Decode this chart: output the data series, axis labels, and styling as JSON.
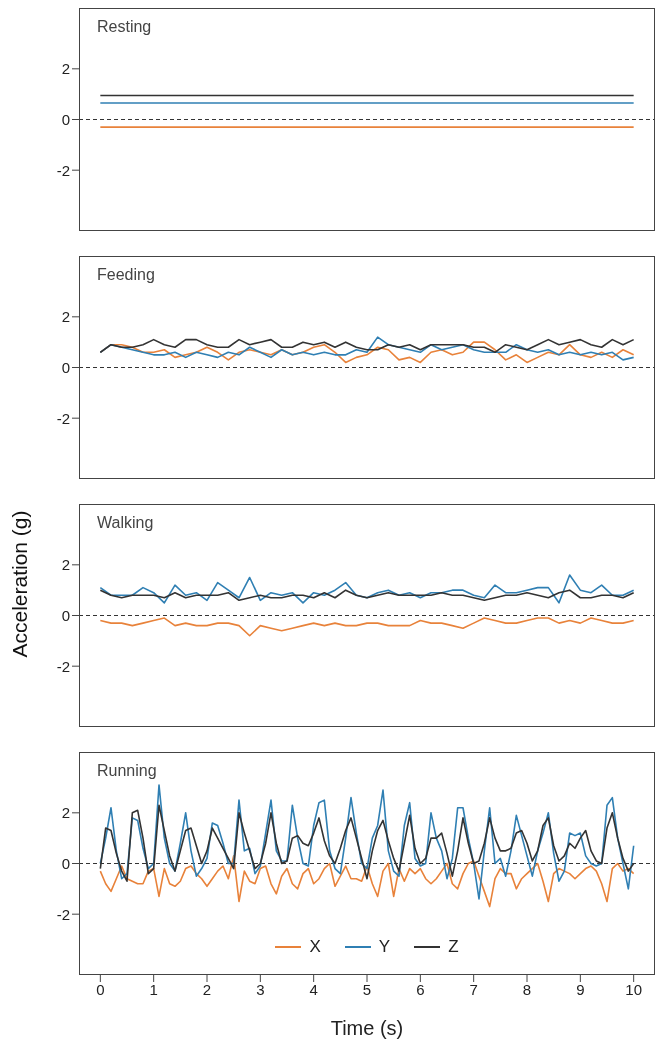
{
  "chart_data": [
    {
      "type": "line",
      "title": "Resting",
      "x": [
        0,
        10
      ],
      "xlim": [
        -0.4,
        10.4
      ],
      "xticks": [
        0,
        1,
        2,
        3,
        4,
        5,
        6,
        7,
        8,
        9,
        10
      ],
      "ylim": [
        -4.4,
        4.4
      ],
      "yticks": [
        -2,
        0,
        2
      ],
      "tick_labels": "y",
      "ref_lines": [
        {
          "axis": "y",
          "value": 0,
          "line_style": "dashed",
          "color": "#333333"
        }
      ],
      "series": [
        {
          "color": "#e8823a",
          "values": [
            -0.3,
            -0.3
          ]
        },
        {
          "color": "#2f7fb3",
          "values": [
            0.65,
            0.65
          ]
        },
        {
          "color": "#333333",
          "values": [
            0.95,
            0.95
          ]
        }
      ]
    },
    {
      "type": "line",
      "title": "Feeding",
      "x": [
        0,
        0.2,
        0.4,
        0.6,
        0.8,
        1,
        1.2,
        1.4,
        1.6,
        1.8,
        2,
        2.2,
        2.4,
        2.6,
        2.8,
        3,
        3.2,
        3.4,
        3.6,
        3.8,
        4,
        4.2,
        4.4,
        4.6,
        4.8,
        5,
        5.2,
        5.4,
        5.6,
        5.8,
        6,
        6.2,
        6.4,
        6.6,
        6.8,
        7,
        7.2,
        7.4,
        7.6,
        7.8,
        8,
        8.2,
        8.4,
        8.6,
        8.8,
        9,
        9.2,
        9.4,
        9.6,
        9.8,
        10
      ],
      "xlim": [
        -0.4,
        10.4
      ],
      "xticks": [
        0,
        1,
        2,
        3,
        4,
        5,
        6,
        7,
        8,
        9,
        10
      ],
      "ylim": [
        -4.4,
        4.4
      ],
      "yticks": [
        -2,
        0,
        2
      ],
      "tick_labels": "y",
      "ref_lines": [
        {
          "axis": "y",
          "value": 0,
          "line_style": "dashed",
          "color": "#333333"
        }
      ],
      "series": [
        {
          "color": "#e8823a",
          "values": [
            0.6,
            0.9,
            0.9,
            0.8,
            0.6,
            0.6,
            0.7,
            0.4,
            0.5,
            0.6,
            0.8,
            0.6,
            0.3,
            0.6,
            0.7,
            0.6,
            0.5,
            0.7,
            0.5,
            0.6,
            0.8,
            0.9,
            0.6,
            0.2,
            0.4,
            0.5,
            0.8,
            0.7,
            0.3,
            0.4,
            0.2,
            0.6,
            0.7,
            0.5,
            0.6,
            1.0,
            1.0,
            0.7,
            0.3,
            0.5,
            0.2,
            0.4,
            0.6,
            0.5,
            0.9,
            0.5,
            0.4,
            0.6,
            0.4,
            0.7,
            0.5
          ]
        },
        {
          "color": "#2f7fb3",
          "values": [
            0.6,
            0.9,
            0.8,
            0.7,
            0.6,
            0.5,
            0.5,
            0.6,
            0.4,
            0.6,
            0.5,
            0.4,
            0.6,
            0.5,
            0.8,
            0.6,
            0.4,
            0.7,
            0.5,
            0.6,
            0.5,
            0.6,
            0.5,
            0.5,
            0.7,
            0.6,
            1.2,
            0.9,
            0.8,
            0.7,
            0.6,
            0.9,
            0.7,
            0.8,
            0.9,
            0.7,
            0.6,
            0.6,
            0.6,
            0.9,
            0.7,
            0.6,
            0.7,
            0.5,
            0.6,
            0.5,
            0.6,
            0.5,
            0.6,
            0.3,
            0.4
          ]
        },
        {
          "color": "#333333",
          "values": [
            0.6,
            0.9,
            0.8,
            0.8,
            0.9,
            1.1,
            0.9,
            0.8,
            1.1,
            1.1,
            0.9,
            0.8,
            0.8,
            1.1,
            0.9,
            1.0,
            1.1,
            0.8,
            0.8,
            1.0,
            0.9,
            1.0,
            0.8,
            1.0,
            0.8,
            0.7,
            0.7,
            0.9,
            0.8,
            0.9,
            0.7,
            0.9,
            0.9,
            0.9,
            0.9,
            0.8,
            0.8,
            0.6,
            0.9,
            0.8,
            0.7,
            0.9,
            1.1,
            0.9,
            1.0,
            1.1,
            0.9,
            0.8,
            1.1,
            0.9,
            1.1
          ]
        }
      ]
    },
    {
      "type": "line",
      "title": "Walking",
      "ylabel": "Acceleration (g)",
      "x": [
        0,
        0.2,
        0.4,
        0.6,
        0.8,
        1,
        1.2,
        1.4,
        1.6,
        1.8,
        2,
        2.2,
        2.4,
        2.6,
        2.8,
        3,
        3.2,
        3.4,
        3.6,
        3.8,
        4,
        4.2,
        4.4,
        4.6,
        4.8,
        5,
        5.2,
        5.4,
        5.6,
        5.8,
        6,
        6.2,
        6.4,
        6.6,
        6.8,
        7,
        7.2,
        7.4,
        7.6,
        7.8,
        8,
        8.2,
        8.4,
        8.6,
        8.8,
        9,
        9.2,
        9.4,
        9.6,
        9.8,
        10
      ],
      "xlim": [
        -0.4,
        10.4
      ],
      "xticks": [
        0,
        1,
        2,
        3,
        4,
        5,
        6,
        7,
        8,
        9,
        10
      ],
      "ylim": [
        -4.4,
        4.4
      ],
      "yticks": [
        -2,
        0,
        2
      ],
      "tick_labels": "y",
      "ref_lines": [
        {
          "axis": "y",
          "value": 0,
          "line_style": "dashed",
          "color": "#333333"
        }
      ],
      "series": [
        {
          "color": "#e8823a",
          "values": [
            -0.2,
            -0.3,
            -0.3,
            -0.4,
            -0.3,
            -0.2,
            -0.1,
            -0.4,
            -0.3,
            -0.4,
            -0.4,
            -0.3,
            -0.3,
            -0.4,
            -0.8,
            -0.4,
            -0.5,
            -0.6,
            -0.5,
            -0.4,
            -0.3,
            -0.4,
            -0.3,
            -0.4,
            -0.4,
            -0.3,
            -0.3,
            -0.4,
            -0.4,
            -0.4,
            -0.2,
            -0.3,
            -0.3,
            -0.4,
            -0.5,
            -0.3,
            -0.1,
            -0.2,
            -0.3,
            -0.3,
            -0.2,
            -0.1,
            -0.1,
            -0.3,
            -0.2,
            -0.3,
            -0.1,
            -0.2,
            -0.3,
            -0.3,
            -0.2
          ]
        },
        {
          "color": "#2f7fb3",
          "values": [
            1.1,
            0.8,
            0.8,
            0.8,
            1.1,
            0.9,
            0.5,
            1.2,
            0.8,
            0.9,
            0.6,
            1.3,
            1.0,
            0.7,
            1.5,
            0.6,
            0.9,
            0.8,
            0.9,
            0.5,
            0.9,
            0.8,
            1.0,
            1.3,
            0.8,
            0.7,
            0.9,
            1.0,
            0.8,
            0.9,
            0.7,
            0.9,
            0.9,
            1.0,
            1.0,
            0.8,
            0.7,
            1.2,
            0.9,
            0.9,
            1.0,
            1.1,
            1.1,
            0.5,
            1.6,
            1.0,
            0.9,
            1.2,
            0.8,
            0.8,
            1.0
          ]
        },
        {
          "color": "#333333",
          "values": [
            1.0,
            0.8,
            0.7,
            0.8,
            0.8,
            0.8,
            0.7,
            0.9,
            0.7,
            0.8,
            0.8,
            0.8,
            0.9,
            0.6,
            0.7,
            0.8,
            0.7,
            0.7,
            0.8,
            0.8,
            0.7,
            0.9,
            0.7,
            1.0,
            0.8,
            0.7,
            0.8,
            0.9,
            0.8,
            0.8,
            0.8,
            0.8,
            0.9,
            0.8,
            0.8,
            0.7,
            0.6,
            0.7,
            0.8,
            0.8,
            0.9,
            0.8,
            0.7,
            0.9,
            1.0,
            0.7,
            0.7,
            0.8,
            0.8,
            0.7,
            0.9
          ]
        }
      ]
    },
    {
      "type": "line",
      "title": "Running",
      "xlabel": "Time (s)",
      "legend": "bottom",
      "x": [
        0,
        0.1,
        0.2,
        0.3,
        0.4,
        0.5,
        0.6,
        0.7,
        0.8,
        0.9,
        1,
        1.1,
        1.2,
        1.3,
        1.4,
        1.5,
        1.6,
        1.7,
        1.8,
        1.9,
        2,
        2.1,
        2.2,
        2.3,
        2.4,
        2.5,
        2.6,
        2.7,
        2.8,
        2.9,
        3,
        3.1,
        3.2,
        3.3,
        3.4,
        3.5,
        3.6,
        3.7,
        3.8,
        3.9,
        4,
        4.1,
        4.2,
        4.3,
        4.4,
        4.5,
        4.6,
        4.7,
        4.8,
        4.9,
        5,
        5.1,
        5.2,
        5.3,
        5.4,
        5.5,
        5.6,
        5.7,
        5.8,
        5.9,
        6,
        6.1,
        6.2,
        6.3,
        6.4,
        6.5,
        6.6,
        6.7,
        6.8,
        6.9,
        7,
        7.1,
        7.2,
        7.3,
        7.4,
        7.5,
        7.6,
        7.7,
        7.8,
        7.9,
        8,
        8.1,
        8.2,
        8.3,
        8.4,
        8.5,
        8.6,
        8.7,
        8.8,
        8.9,
        9,
        9.1,
        9.2,
        9.3,
        9.4,
        9.5,
        9.6,
        9.7,
        9.8,
        9.9,
        10
      ],
      "xlim": [
        -0.4,
        10.4
      ],
      "xticks": [
        0,
        1,
        2,
        3,
        4,
        5,
        6,
        7,
        8,
        9,
        10
      ],
      "ylim": [
        -4.4,
        4.4
      ],
      "yticks": [
        -2,
        0,
        2
      ],
      "ref_lines": [
        {
          "axis": "y",
          "value": 0,
          "line_style": "dashed",
          "color": "#333333"
        }
      ],
      "series": [
        {
          "name": "X",
          "color": "#e8823a",
          "values": [
            -0.3,
            -0.8,
            -1.1,
            -0.6,
            -0.1,
            -0.6,
            -0.7,
            -0.8,
            -0.8,
            -0.3,
            -0.2,
            -1.3,
            -0.2,
            -0.8,
            -0.9,
            -0.7,
            -0.2,
            -0.1,
            -0.4,
            -0.6,
            -0.9,
            -0.6,
            -0.3,
            -0.1,
            -0.6,
            0.3,
            -1.5,
            -0.3,
            -0.7,
            -0.8,
            -0.2,
            -0.1,
            -0.8,
            -1.2,
            -0.5,
            -0.2,
            -0.8,
            -1.0,
            -0.4,
            -0.2,
            -0.8,
            -0.6,
            -0.2,
            0.0,
            -0.9,
            -0.5,
            -0.1,
            -0.6,
            -0.6,
            -0.7,
            -0.1,
            -0.8,
            -1.3,
            -0.3,
            0.0,
            -1.3,
            -0.2,
            -0.7,
            -0.2,
            -0.4,
            -0.2,
            -0.6,
            -0.8,
            -0.6,
            -0.3,
            0.0,
            -0.8,
            -1.0,
            -0.4,
            0.0,
            0.1,
            -0.5,
            -1.1,
            -1.7,
            -0.6,
            -0.2,
            -0.4,
            -0.4,
            -1.0,
            -0.6,
            -0.4,
            -0.2,
            0.0,
            -0.7,
            -1.5,
            -0.4,
            -0.2,
            -0.3,
            -0.4,
            -0.6,
            -0.4,
            -0.2,
            -0.1,
            -0.3,
            -0.8,
            -1.5,
            -0.2,
            0.0,
            -0.3,
            -0.2,
            -0.4
          ]
        },
        {
          "name": "Y",
          "color": "#2f7fb3",
          "values": [
            0.0,
            1.0,
            2.2,
            0.5,
            -0.6,
            -0.4,
            1.8,
            1.7,
            0.6,
            -0.2,
            0.0,
            3.1,
            1.0,
            0.0,
            -0.3,
            0.8,
            2.0,
            0.5,
            -0.5,
            -0.2,
            0.2,
            1.6,
            1.5,
            0.8,
            0.0,
            0.0,
            2.5,
            0.5,
            0.6,
            -0.4,
            -0.1,
            1.2,
            2.5,
            0.5,
            0.1,
            0.1,
            2.3,
            1.0,
            0.0,
            -0.1,
            1.5,
            2.4,
            2.5,
            0.5,
            -0.2,
            -0.4,
            1.0,
            2.6,
            1.2,
            0.0,
            -0.2,
            1.0,
            1.5,
            2.9,
            0.5,
            -0.3,
            -0.5,
            1.5,
            2.4,
            0.2,
            -0.1,
            0.0,
            2.0,
            1.0,
            0.5,
            -0.6,
            0.2,
            2.2,
            2.2,
            1.0,
            0.0,
            -1.4,
            0.5,
            2.2,
            0.0,
            0.2,
            -0.5,
            0.5,
            1.9,
            1.1,
            0.3,
            -0.5,
            0.5,
            1.2,
            2.0,
            0.4,
            -0.7,
            -0.3,
            1.2,
            1.1,
            1.2,
            0.3,
            0.0,
            -0.1,
            0.0,
            2.3,
            2.6,
            1.0,
            0.0,
            -1.0,
            0.7
          ]
        },
        {
          "name": "Z",
          "color": "#333333",
          "values": [
            -0.2,
            1.4,
            1.3,
            0.4,
            -0.3,
            -0.7,
            2.0,
            2.1,
            1.0,
            -0.4,
            -0.2,
            2.3,
            1.3,
            0.3,
            -0.3,
            0.5,
            1.3,
            1.4,
            0.7,
            0.0,
            0.5,
            1.4,
            1.0,
            0.6,
            0.2,
            -0.2,
            2.0,
            1.2,
            0.5,
            -0.2,
            0.0,
            0.8,
            2.0,
            0.8,
            0.0,
            0.1,
            1.0,
            1.1,
            0.8,
            0.7,
            1.2,
            1.8,
            0.9,
            0.3,
            0.0,
            0.6,
            1.3,
            1.8,
            1.0,
            0.2,
            -0.6,
            0.5,
            1.3,
            1.7,
            0.9,
            0.2,
            -0.3,
            0.8,
            1.9,
            0.6,
            0.0,
            0.2,
            1.0,
            1.0,
            1.2,
            0.4,
            -0.5,
            0.5,
            1.8,
            0.8,
            0.0,
            0.1,
            0.8,
            1.8,
            1.0,
            0.5,
            0.5,
            0.6,
            1.2,
            1.3,
            0.8,
            0.1,
            0.5,
            1.5,
            1.8,
            0.7,
            0.1,
            0.3,
            0.8,
            0.6,
            1.0,
            1.3,
            0.5,
            0.1,
            0.0,
            1.4,
            2.0,
            1.0,
            0.2,
            -0.3,
            0.0
          ]
        }
      ]
    }
  ]
}
